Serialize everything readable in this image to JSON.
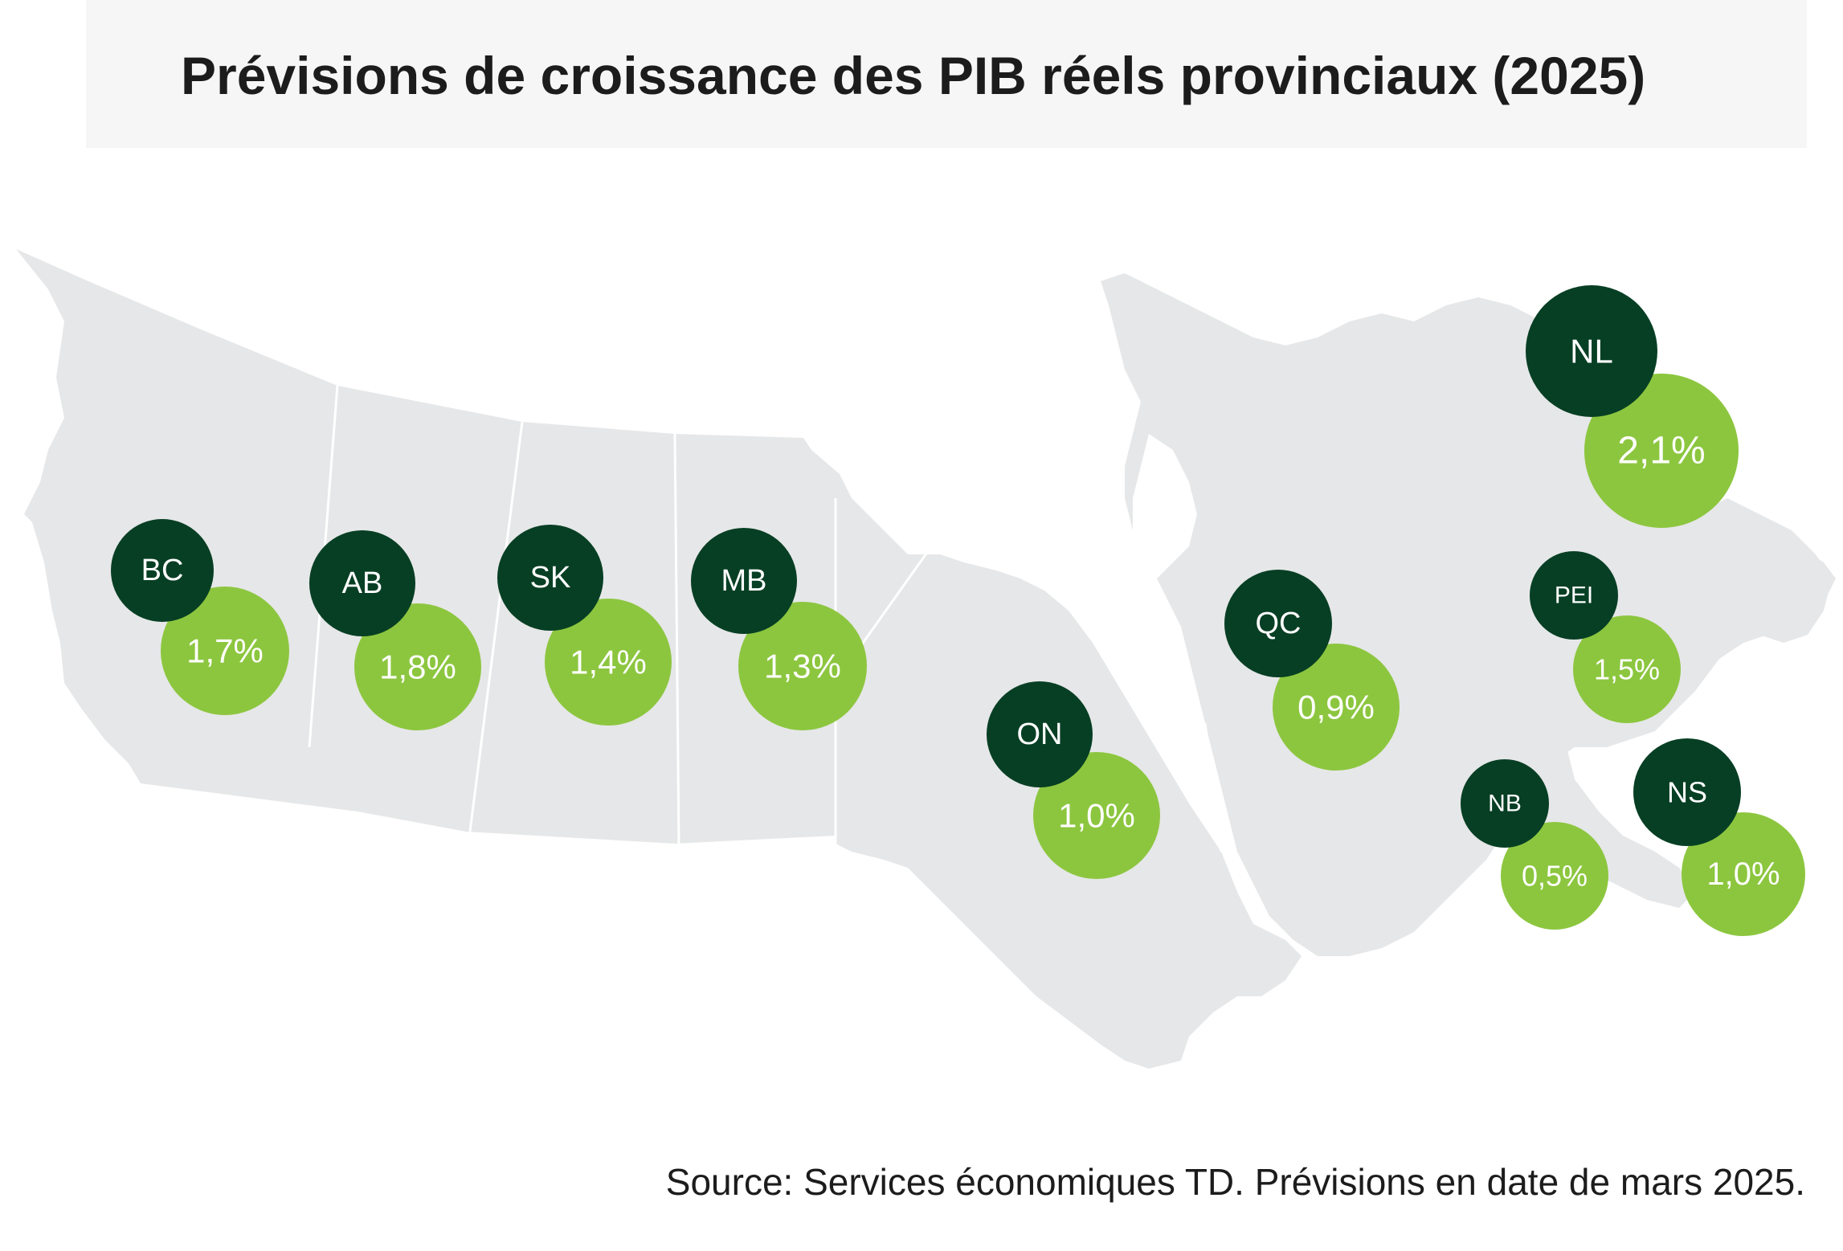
{
  "title": "Prévisions de croissance des PIB réels provinciaux (2025)",
  "source": "Source: Services économiques TD. Prévisions en date de mars 2025.",
  "colors": {
    "map_fill": "#e6e7e8",
    "dark_circle": "#073f24",
    "light_circle": "#8cc63f",
    "title_bg": "#f6f6f7"
  },
  "provinces": [
    {
      "code": "BC",
      "growth": "1,7%"
    },
    {
      "code": "AB",
      "growth": "1,8%"
    },
    {
      "code": "SK",
      "growth": "1,4%"
    },
    {
      "code": "MB",
      "growth": "1,3%"
    },
    {
      "code": "ON",
      "growth": "1,0%"
    },
    {
      "code": "QC",
      "growth": "0,9%"
    },
    {
      "code": "NL",
      "growth": "2,1%"
    },
    {
      "code": "PEI",
      "growth": "1,5%"
    },
    {
      "code": "NB",
      "growth": "0,5%"
    },
    {
      "code": "NS",
      "growth": "1,0%"
    }
  ]
}
